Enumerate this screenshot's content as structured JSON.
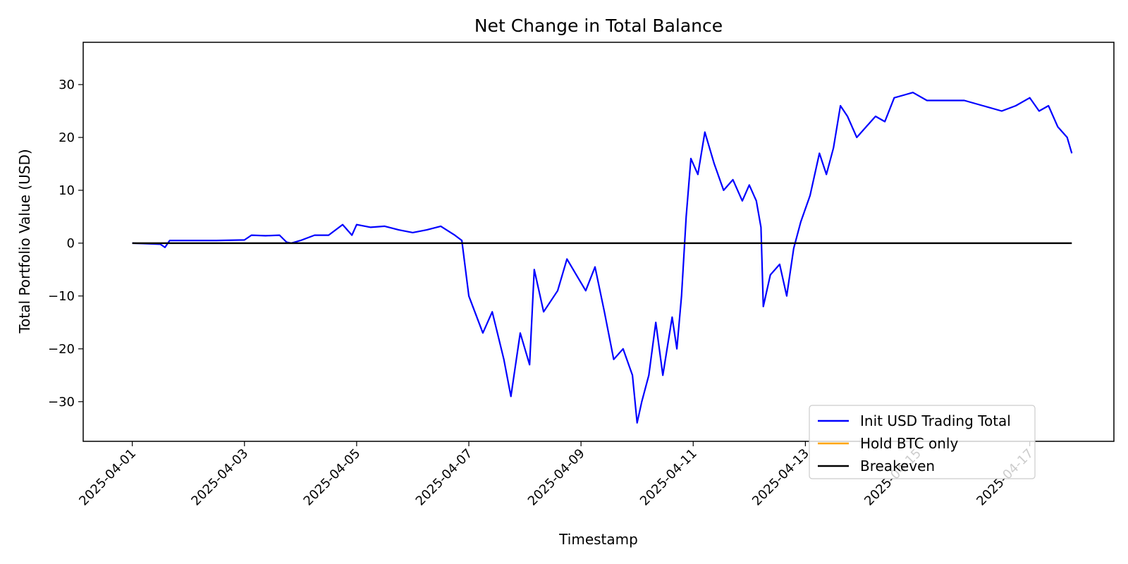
{
  "chart_data": {
    "type": "line",
    "title": "Net Change in Total Balance",
    "xlabel": "Timestamp",
    "ylabel": "Total Portfolio Value (USD)",
    "x_range_days": [
      "2025-04-01",
      "2025-04-17T18:00"
    ],
    "xlim": [
      "2025-03-31T03:00",
      "2025-04-18T12:00"
    ],
    "ylim": [
      -37.5,
      38
    ],
    "x_ticks": [
      "2025-04-01",
      "2025-04-03",
      "2025-04-05",
      "2025-04-07",
      "2025-04-09",
      "2025-04-11",
      "2025-04-13",
      "2025-04-15",
      "2025-04-17"
    ],
    "y_ticks": [
      -30,
      -20,
      -10,
      0,
      10,
      20,
      30
    ],
    "y_tick_labels": [
      "−30",
      "−20",
      "−10",
      "0",
      "10",
      "20",
      "30"
    ],
    "grid": false,
    "legend_position": "lower-right",
    "series": [
      {
        "name": "Init USD Trading Total",
        "color": "#0000ff",
        "points": [
          [
            "2025-04-01T00:00",
            0.0
          ],
          [
            "2025-04-01T12:00",
            -0.2
          ],
          [
            "2025-04-01T14:00",
            -0.8
          ],
          [
            "2025-04-01T16:00",
            0.5
          ],
          [
            "2025-04-02T00:00",
            0.5
          ],
          [
            "2025-04-02T12:00",
            0.5
          ],
          [
            "2025-04-03T00:00",
            0.6
          ],
          [
            "2025-04-03T03:00",
            1.5
          ],
          [
            "2025-04-03T09:00",
            1.4
          ],
          [
            "2025-04-03T15:00",
            1.5
          ],
          [
            "2025-04-03T18:00",
            0.2
          ],
          [
            "2025-04-03T20:00",
            0.0
          ],
          [
            "2025-04-04T00:00",
            0.5
          ],
          [
            "2025-04-04T06:00",
            1.5
          ],
          [
            "2025-04-04T12:00",
            1.5
          ],
          [
            "2025-04-04T18:00",
            3.5
          ],
          [
            "2025-04-04T22:00",
            1.5
          ],
          [
            "2025-04-05T00:00",
            3.5
          ],
          [
            "2025-04-05T06:00",
            3.0
          ],
          [
            "2025-04-05T12:00",
            3.2
          ],
          [
            "2025-04-05T18:00",
            2.5
          ],
          [
            "2025-04-06T00:00",
            2.0
          ],
          [
            "2025-04-06T06:00",
            2.5
          ],
          [
            "2025-04-06T12:00",
            3.2
          ],
          [
            "2025-04-06T18:00",
            1.5
          ],
          [
            "2025-04-06T21:00",
            0.5
          ],
          [
            "2025-04-07T00:00",
            -10.0
          ],
          [
            "2025-04-07T06:00",
            -17.0
          ],
          [
            "2025-04-07T10:00",
            -13.0
          ],
          [
            "2025-04-07T15:00",
            -22.0
          ],
          [
            "2025-04-07T18:00",
            -29.0
          ],
          [
            "2025-04-07T22:00",
            -17.0
          ],
          [
            "2025-04-08T02:00",
            -23.0
          ],
          [
            "2025-04-08T04:00",
            -5.0
          ],
          [
            "2025-04-08T08:00",
            -13.0
          ],
          [
            "2025-04-08T14:00",
            -9.0
          ],
          [
            "2025-04-08T18:00",
            -3.0
          ],
          [
            "2025-04-08T22:00",
            -6.0
          ],
          [
            "2025-04-09T02:00",
            -9.0
          ],
          [
            "2025-04-09T06:00",
            -4.5
          ],
          [
            "2025-04-09T10:00",
            -13.0
          ],
          [
            "2025-04-09T14:00",
            -22.0
          ],
          [
            "2025-04-09T18:00",
            -20.0
          ],
          [
            "2025-04-09T22:00",
            -25.0
          ],
          [
            "2025-04-10T00:00",
            -34.0
          ],
          [
            "2025-04-10T02:00",
            -30.0
          ],
          [
            "2025-04-10T05:00",
            -25.0
          ],
          [
            "2025-04-10T08:00",
            -15.0
          ],
          [
            "2025-04-10T11:00",
            -25.0
          ],
          [
            "2025-04-10T15:00",
            -14.0
          ],
          [
            "2025-04-10T17:00",
            -20.0
          ],
          [
            "2025-04-10T19:00",
            -10.0
          ],
          [
            "2025-04-10T21:00",
            5.0
          ],
          [
            "2025-04-10T23:00",
            16.0
          ],
          [
            "2025-04-11T02:00",
            13.0
          ],
          [
            "2025-04-11T05:00",
            21.0
          ],
          [
            "2025-04-11T09:00",
            15.0
          ],
          [
            "2025-04-11T13:00",
            10.0
          ],
          [
            "2025-04-11T17:00",
            12.0
          ],
          [
            "2025-04-11T21:00",
            8.0
          ],
          [
            "2025-04-12T00:00",
            11.0
          ],
          [
            "2025-04-12T03:00",
            8.0
          ],
          [
            "2025-04-12T05:00",
            3.0
          ],
          [
            "2025-04-12T06:00",
            -12.0
          ],
          [
            "2025-04-12T09:00",
            -6.0
          ],
          [
            "2025-04-12T13:00",
            -4.0
          ],
          [
            "2025-04-12T16:00",
            -10.0
          ],
          [
            "2025-04-12T19:00",
            -1.0
          ],
          [
            "2025-04-12T22:00",
            4.0
          ],
          [
            "2025-04-13T02:00",
            9.0
          ],
          [
            "2025-04-13T06:00",
            17.0
          ],
          [
            "2025-04-13T09:00",
            13.0
          ],
          [
            "2025-04-13T12:00",
            18.0
          ],
          [
            "2025-04-13T15:00",
            26.0
          ],
          [
            "2025-04-13T18:00",
            24.0
          ],
          [
            "2025-04-13T22:00",
            20.0
          ],
          [
            "2025-04-14T02:00",
            22.0
          ],
          [
            "2025-04-14T06:00",
            24.0
          ],
          [
            "2025-04-14T10:00",
            23.0
          ],
          [
            "2025-04-14T14:00",
            27.5
          ],
          [
            "2025-04-14T18:00",
            28.0
          ],
          [
            "2025-04-14T22:00",
            28.5
          ],
          [
            "2025-04-15T04:00",
            27.0
          ],
          [
            "2025-04-15T12:00",
            27.0
          ],
          [
            "2025-04-15T20:00",
            27.0
          ],
          [
            "2025-04-16T04:00",
            26.0
          ],
          [
            "2025-04-16T12:00",
            25.0
          ],
          [
            "2025-04-16T18:00",
            26.0
          ],
          [
            "2025-04-17T00:00",
            27.5
          ],
          [
            "2025-04-17T04:00",
            25.0
          ],
          [
            "2025-04-17T08:00",
            26.0
          ],
          [
            "2025-04-17T12:00",
            22.0
          ],
          [
            "2025-04-17T16:00",
            20.0
          ],
          [
            "2025-04-17T18:00",
            17.0
          ]
        ]
      },
      {
        "name": "Hold BTC only",
        "color": "#ffa500",
        "points": []
      },
      {
        "name": "Breakeven",
        "color": "#000000",
        "points": [
          [
            "2025-04-01T00:00",
            0
          ],
          [
            "2025-04-17T18:00",
            0
          ]
        ]
      }
    ]
  }
}
